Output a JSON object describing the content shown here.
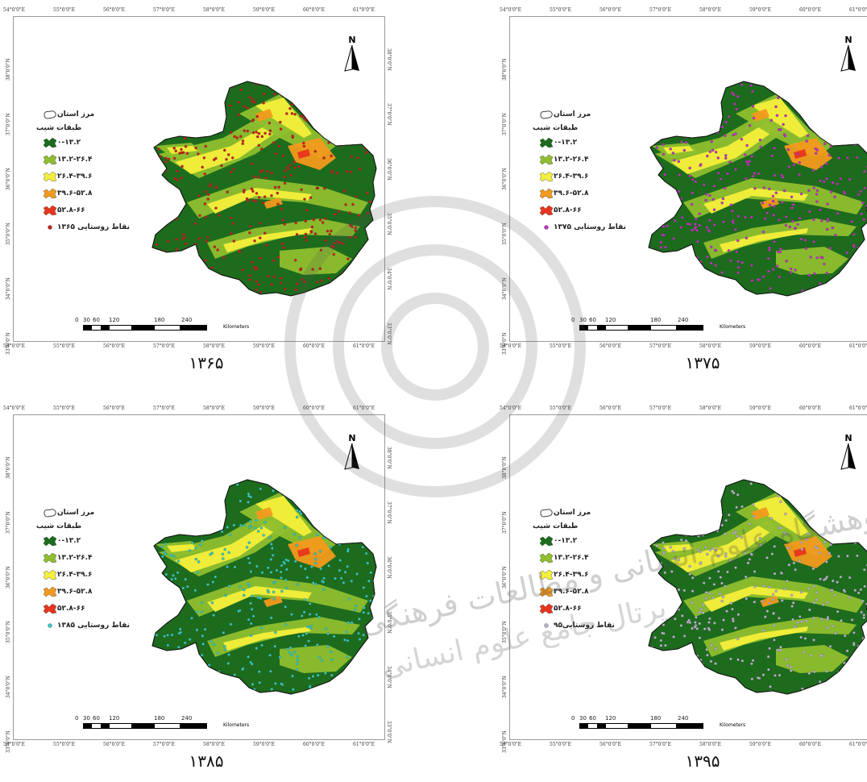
{
  "longitude_ticks": [
    "54°0'0\"E",
    "55°0'0\"E",
    "56°0'0\"E",
    "57°0'0\"E",
    "58°0'0\"E",
    "59°0'0\"E",
    "60°0'0\"E",
    "61°0'0\"E"
  ],
  "latitude_ticks": [
    "38°0'0\"N",
    "37°0'0\"N",
    "36°0'0\"N",
    "35°0'0\"N",
    "34°0'0\"N",
    "33°0'0\"N"
  ],
  "north_label": "N",
  "legend": {
    "boundary_label": "مرز استان",
    "slope_title": "طبقات شیب",
    "classes": [
      {
        "label": "۰-۱۳.۲",
        "color": "#1d6b1d"
      },
      {
        "label": "۱۳.۲-۲۶.۴",
        "color": "#8fbf2e"
      },
      {
        "label": "۲۶.۴-۳۹.۶",
        "color": "#f4ef3a"
      },
      {
        "label": "۳۹.۶-۵۲.۸",
        "color": "#f39a1e"
      },
      {
        "label": "۵۲.۸-۶۶",
        "color": "#e8351e"
      }
    ]
  },
  "scale": {
    "ticks": [
      "0",
      "30",
      "60",
      "120",
      "180",
      "240"
    ],
    "unit": "Kilometers"
  },
  "panels": [
    {
      "year": "۱۳۶۵",
      "points_label": "نقاط روستایی ۱۳۶۵",
      "point_color": "#c8201c"
    },
    {
      "year": "۱۳۷۵",
      "points_label": "نقاط روستایی ۱۳۷۵",
      "point_color": "#c233c0"
    },
    {
      "year": "۱۳۸۵",
      "points_label": "نقاط روستایی ۱۳۸۵",
      "point_color": "#36c9c0"
    },
    {
      "year": "۱۳۹۵",
      "points_label": "نقاط روستایی۹۵",
      "point_color": "#b9b2c8"
    }
  ],
  "watermark": {
    "line1": "پژوهشگاه علوم انسانی و مطالعات فرهنگی",
    "line2": "پرتال جامع علوم انسانی"
  }
}
